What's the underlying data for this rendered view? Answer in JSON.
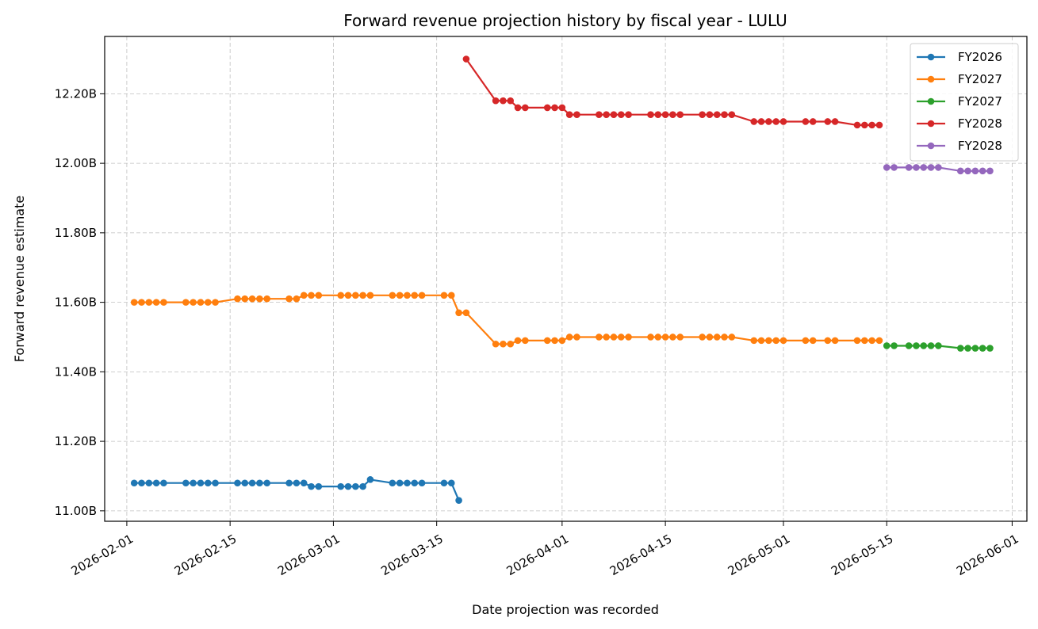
{
  "chart_data": {
    "type": "line",
    "title": "Forward revenue projection history by fiscal year - LULU",
    "xlabel": "Date projection was recorded",
    "ylabel": "Forward revenue estimate",
    "xlim": [
      "2026-01-29",
      "2026-06-03"
    ],
    "ylim": [
      10.97,
      12.365
    ],
    "y_unit": "B",
    "xticks": [
      "2026-02-01",
      "2026-02-15",
      "2026-03-01",
      "2026-03-15",
      "2026-04-01",
      "2026-04-15",
      "2026-05-01",
      "2026-05-15",
      "2026-06-01"
    ],
    "yticks": [
      11.0,
      11.2,
      11.4,
      11.6,
      11.8,
      12.0,
      12.2
    ],
    "ytick_labels": [
      "11.00B",
      "11.20B",
      "11.40B",
      "11.60B",
      "11.80B",
      "12.00B",
      "12.20B"
    ],
    "grid": true,
    "legend_position": "top-right",
    "series": [
      {
        "name": "FY2026",
        "color": "#1f77b4",
        "x": [
          "2026-02-02",
          "2026-02-03",
          "2026-02-04",
          "2026-02-05",
          "2026-02-06",
          "2026-02-09",
          "2026-02-10",
          "2026-02-11",
          "2026-02-12",
          "2026-02-13",
          "2026-02-16",
          "2026-02-17",
          "2026-02-18",
          "2026-02-19",
          "2026-02-20",
          "2026-02-23",
          "2026-02-24",
          "2026-02-25",
          "2026-02-26",
          "2026-02-27",
          "2026-03-02",
          "2026-03-03",
          "2026-03-04",
          "2026-03-05",
          "2026-03-06",
          "2026-03-09",
          "2026-03-10",
          "2026-03-11",
          "2026-03-12",
          "2026-03-13",
          "2026-03-16",
          "2026-03-17",
          "2026-03-18"
        ],
        "y": [
          11.08,
          11.08,
          11.08,
          11.08,
          11.08,
          11.08,
          11.08,
          11.08,
          11.08,
          11.08,
          11.08,
          11.08,
          11.08,
          11.08,
          11.08,
          11.08,
          11.08,
          11.08,
          11.07,
          11.07,
          11.07,
          11.07,
          11.07,
          11.07,
          11.09,
          11.08,
          11.08,
          11.08,
          11.08,
          11.08,
          11.08,
          11.08,
          11.03
        ]
      },
      {
        "name": "FY2027",
        "color": "#ff7f0e",
        "x": [
          "2026-02-02",
          "2026-02-03",
          "2026-02-04",
          "2026-02-05",
          "2026-02-06",
          "2026-02-09",
          "2026-02-10",
          "2026-02-11",
          "2026-02-12",
          "2026-02-13",
          "2026-02-16",
          "2026-02-17",
          "2026-02-18",
          "2026-02-19",
          "2026-02-20",
          "2026-02-23",
          "2026-02-24",
          "2026-02-25",
          "2026-02-26",
          "2026-02-27",
          "2026-03-02",
          "2026-03-03",
          "2026-03-04",
          "2026-03-05",
          "2026-03-06",
          "2026-03-09",
          "2026-03-10",
          "2026-03-11",
          "2026-03-12",
          "2026-03-13",
          "2026-03-16",
          "2026-03-17",
          "2026-03-18",
          "2026-03-19",
          "2026-03-23",
          "2026-03-24",
          "2026-03-25",
          "2026-03-26",
          "2026-03-27",
          "2026-03-30",
          "2026-03-31",
          "2026-04-01",
          "2026-04-02",
          "2026-04-03",
          "2026-04-06",
          "2026-04-07",
          "2026-04-08",
          "2026-04-09",
          "2026-04-10",
          "2026-04-13",
          "2026-04-14",
          "2026-04-15",
          "2026-04-16",
          "2026-04-17",
          "2026-04-20",
          "2026-04-21",
          "2026-04-22",
          "2026-04-23",
          "2026-04-24",
          "2026-04-27",
          "2026-04-28",
          "2026-04-29",
          "2026-04-30",
          "2026-05-01",
          "2026-05-04",
          "2026-05-05",
          "2026-05-07",
          "2026-05-08",
          "2026-05-11",
          "2026-05-12",
          "2026-05-13",
          "2026-05-14"
        ],
        "y": [
          11.6,
          11.6,
          11.6,
          11.6,
          11.6,
          11.6,
          11.6,
          11.6,
          11.6,
          11.6,
          11.61,
          11.61,
          11.61,
          11.61,
          11.61,
          11.61,
          11.61,
          11.62,
          11.62,
          11.62,
          11.62,
          11.62,
          11.62,
          11.62,
          11.62,
          11.62,
          11.62,
          11.62,
          11.62,
          11.62,
          11.62,
          11.62,
          11.57,
          11.57,
          11.48,
          11.48,
          11.48,
          11.49,
          11.49,
          11.49,
          11.49,
          11.49,
          11.5,
          11.5,
          11.5,
          11.5,
          11.5,
          11.5,
          11.5,
          11.5,
          11.5,
          11.5,
          11.5,
          11.5,
          11.5,
          11.5,
          11.5,
          11.5,
          11.5,
          11.49,
          11.49,
          11.49,
          11.49,
          11.49,
          11.49,
          11.49,
          11.49,
          11.49,
          11.49,
          11.49,
          11.49,
          11.49
        ]
      },
      {
        "name": "FY2027",
        "color": "#2ca02c",
        "x": [
          "2026-05-15",
          "2026-05-16",
          "2026-05-18",
          "2026-05-19",
          "2026-05-20",
          "2026-05-21",
          "2026-05-22",
          "2026-05-25",
          "2026-05-26",
          "2026-05-27",
          "2026-05-28",
          "2026-05-29"
        ],
        "y": [
          11.475,
          11.475,
          11.475,
          11.475,
          11.475,
          11.475,
          11.475,
          11.468,
          11.468,
          11.468,
          11.468,
          11.468
        ]
      },
      {
        "name": "FY2028",
        "color": "#d62728",
        "x": [
          "2026-03-19",
          "2026-03-23",
          "2026-03-24",
          "2026-03-25",
          "2026-03-26",
          "2026-03-27",
          "2026-03-30",
          "2026-03-31",
          "2026-04-01",
          "2026-04-02",
          "2026-04-03",
          "2026-04-06",
          "2026-04-07",
          "2026-04-08",
          "2026-04-09",
          "2026-04-10",
          "2026-04-13",
          "2026-04-14",
          "2026-04-15",
          "2026-04-16",
          "2026-04-17",
          "2026-04-20",
          "2026-04-21",
          "2026-04-22",
          "2026-04-23",
          "2026-04-24",
          "2026-04-27",
          "2026-04-28",
          "2026-04-29",
          "2026-04-30",
          "2026-05-01",
          "2026-05-04",
          "2026-05-05",
          "2026-05-07",
          "2026-05-08",
          "2026-05-11",
          "2026-05-12",
          "2026-05-13",
          "2026-05-14"
        ],
        "y": [
          12.3,
          12.18,
          12.18,
          12.18,
          12.16,
          12.16,
          12.16,
          12.16,
          12.16,
          12.14,
          12.14,
          12.14,
          12.14,
          12.14,
          12.14,
          12.14,
          12.14,
          12.14,
          12.14,
          12.14,
          12.14,
          12.14,
          12.14,
          12.14,
          12.14,
          12.14,
          12.12,
          12.12,
          12.12,
          12.12,
          12.12,
          12.12,
          12.12,
          12.12,
          12.12,
          12.11,
          12.11,
          12.11,
          12.11
        ]
      },
      {
        "name": "FY2028",
        "color": "#9467bd",
        "x": [
          "2026-05-15",
          "2026-05-16",
          "2026-05-18",
          "2026-05-19",
          "2026-05-20",
          "2026-05-21",
          "2026-05-22",
          "2026-05-25",
          "2026-05-26",
          "2026-05-27",
          "2026-05-28",
          "2026-05-29"
        ],
        "y": [
          11.988,
          11.988,
          11.988,
          11.988,
          11.988,
          11.988,
          11.988,
          11.978,
          11.978,
          11.978,
          11.978,
          11.978
        ]
      }
    ]
  }
}
